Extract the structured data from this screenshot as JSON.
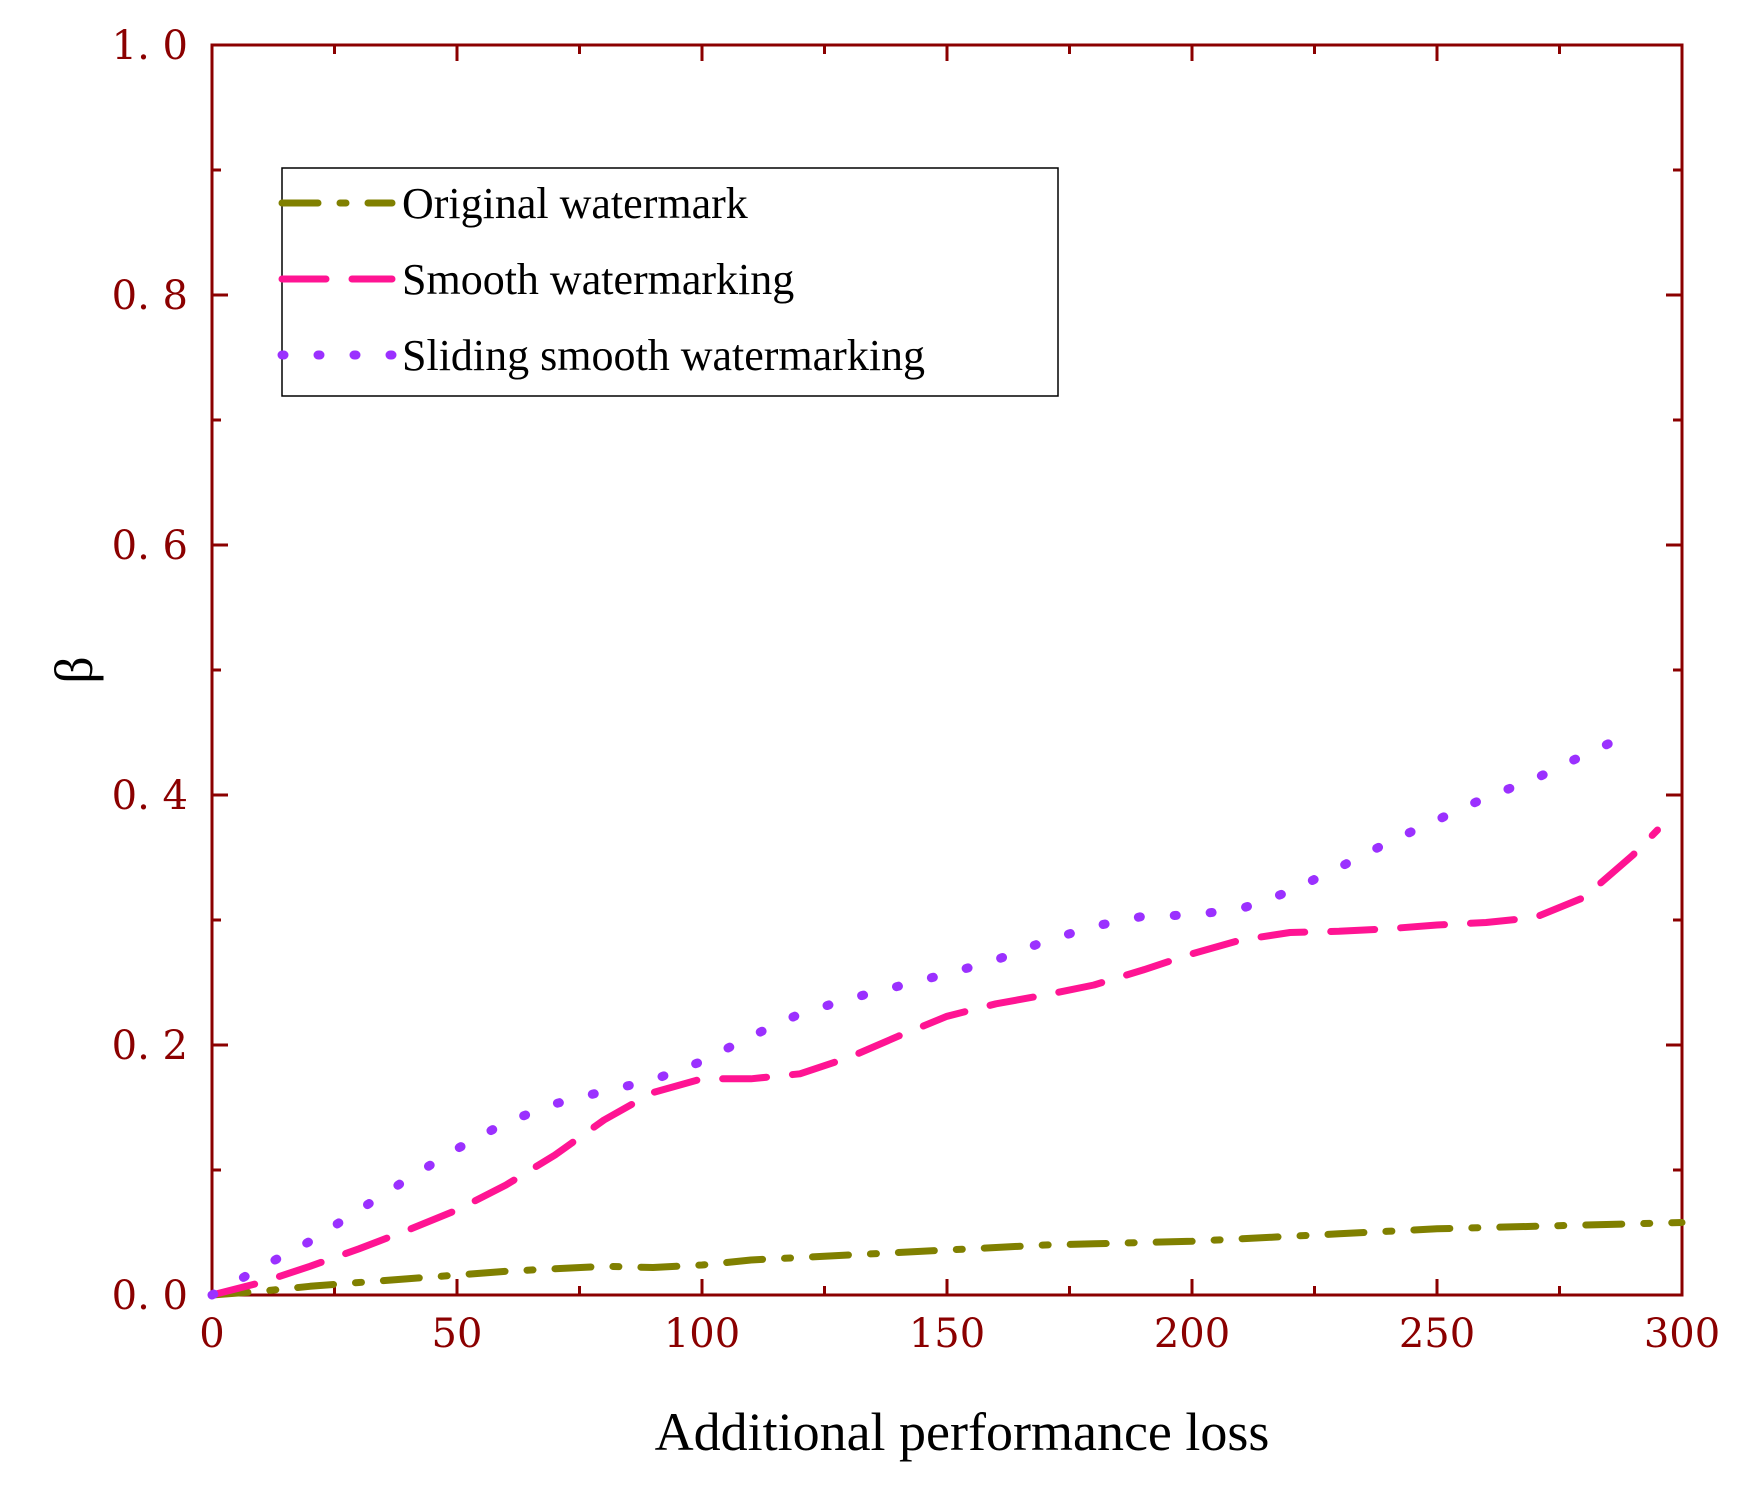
{
  "chart_data": {
    "type": "line",
    "xlabel": "Additional performance loss",
    "ylabel": "β",
    "xlim": [
      0,
      300
    ],
    "ylim": [
      0,
      1.0
    ],
    "xticks": [
      0,
      50,
      100,
      150,
      200,
      250,
      300
    ],
    "xtick_labels": [
      "0",
      "50",
      "100",
      "150",
      "200",
      "250",
      "300"
    ],
    "yticks": [
      0,
      0.2,
      0.4,
      0.6,
      0.8,
      1.0
    ],
    "ytick_labels": [
      "0. 0",
      "0. 2",
      "0. 4",
      "0. 6",
      "0. 8",
      "1. 0"
    ],
    "grid": false,
    "legend_position": "top-left",
    "series": [
      {
        "name": "Original watermark",
        "color": "#808000",
        "style": "dash-dot",
        "x": [
          0,
          10,
          20,
          30,
          40,
          50,
          60,
          70,
          80,
          90,
          100,
          110,
          120,
          130,
          140,
          150,
          160,
          170,
          180,
          190,
          200,
          210,
          220,
          230,
          240,
          250,
          260,
          270,
          280,
          290,
          300
        ],
        "y": [
          0,
          0.003,
          0.007,
          0.01,
          0.013,
          0.016,
          0.019,
          0.021,
          0.023,
          0.022,
          0.024,
          0.028,
          0.03,
          0.032,
          0.034,
          0.036,
          0.038,
          0.04,
          0.041,
          0.042,
          0.043,
          0.045,
          0.047,
          0.049,
          0.051,
          0.053,
          0.054,
          0.055,
          0.056,
          0.057,
          0.058
        ]
      },
      {
        "name": "Smooth watermarking",
        "color": "#ff1493",
        "style": "dashed",
        "x": [
          0,
          10,
          20,
          30,
          40,
          50,
          60,
          70,
          80,
          90,
          100,
          110,
          120,
          130,
          140,
          150,
          160,
          170,
          180,
          190,
          200,
          210,
          220,
          230,
          240,
          250,
          260,
          270,
          280,
          290,
          295
        ],
        "y": [
          0,
          0.01,
          0.023,
          0.037,
          0.052,
          0.068,
          0.088,
          0.112,
          0.14,
          0.162,
          0.173,
          0.173,
          0.177,
          0.19,
          0.207,
          0.223,
          0.233,
          0.24,
          0.248,
          0.26,
          0.273,
          0.284,
          0.29,
          0.291,
          0.293,
          0.296,
          0.298,
          0.302,
          0.318,
          0.352,
          0.372
        ]
      },
      {
        "name": "Sliding smooth watermarking",
        "color": "#9b30ff",
        "style": "dotted",
        "x": [
          0,
          10,
          20,
          30,
          40,
          50,
          60,
          70,
          80,
          90,
          100,
          110,
          120,
          130,
          140,
          150,
          160,
          170,
          180,
          190,
          200,
          210,
          220,
          230,
          240,
          250,
          260,
          270,
          280,
          290
        ],
        "y": [
          0,
          0.022,
          0.043,
          0.068,
          0.093,
          0.117,
          0.138,
          0.153,
          0.163,
          0.172,
          0.187,
          0.207,
          0.225,
          0.237,
          0.247,
          0.257,
          0.268,
          0.283,
          0.295,
          0.303,
          0.304,
          0.309,
          0.323,
          0.342,
          0.362,
          0.38,
          0.398,
          0.413,
          0.432,
          0.45
        ]
      }
    ]
  }
}
